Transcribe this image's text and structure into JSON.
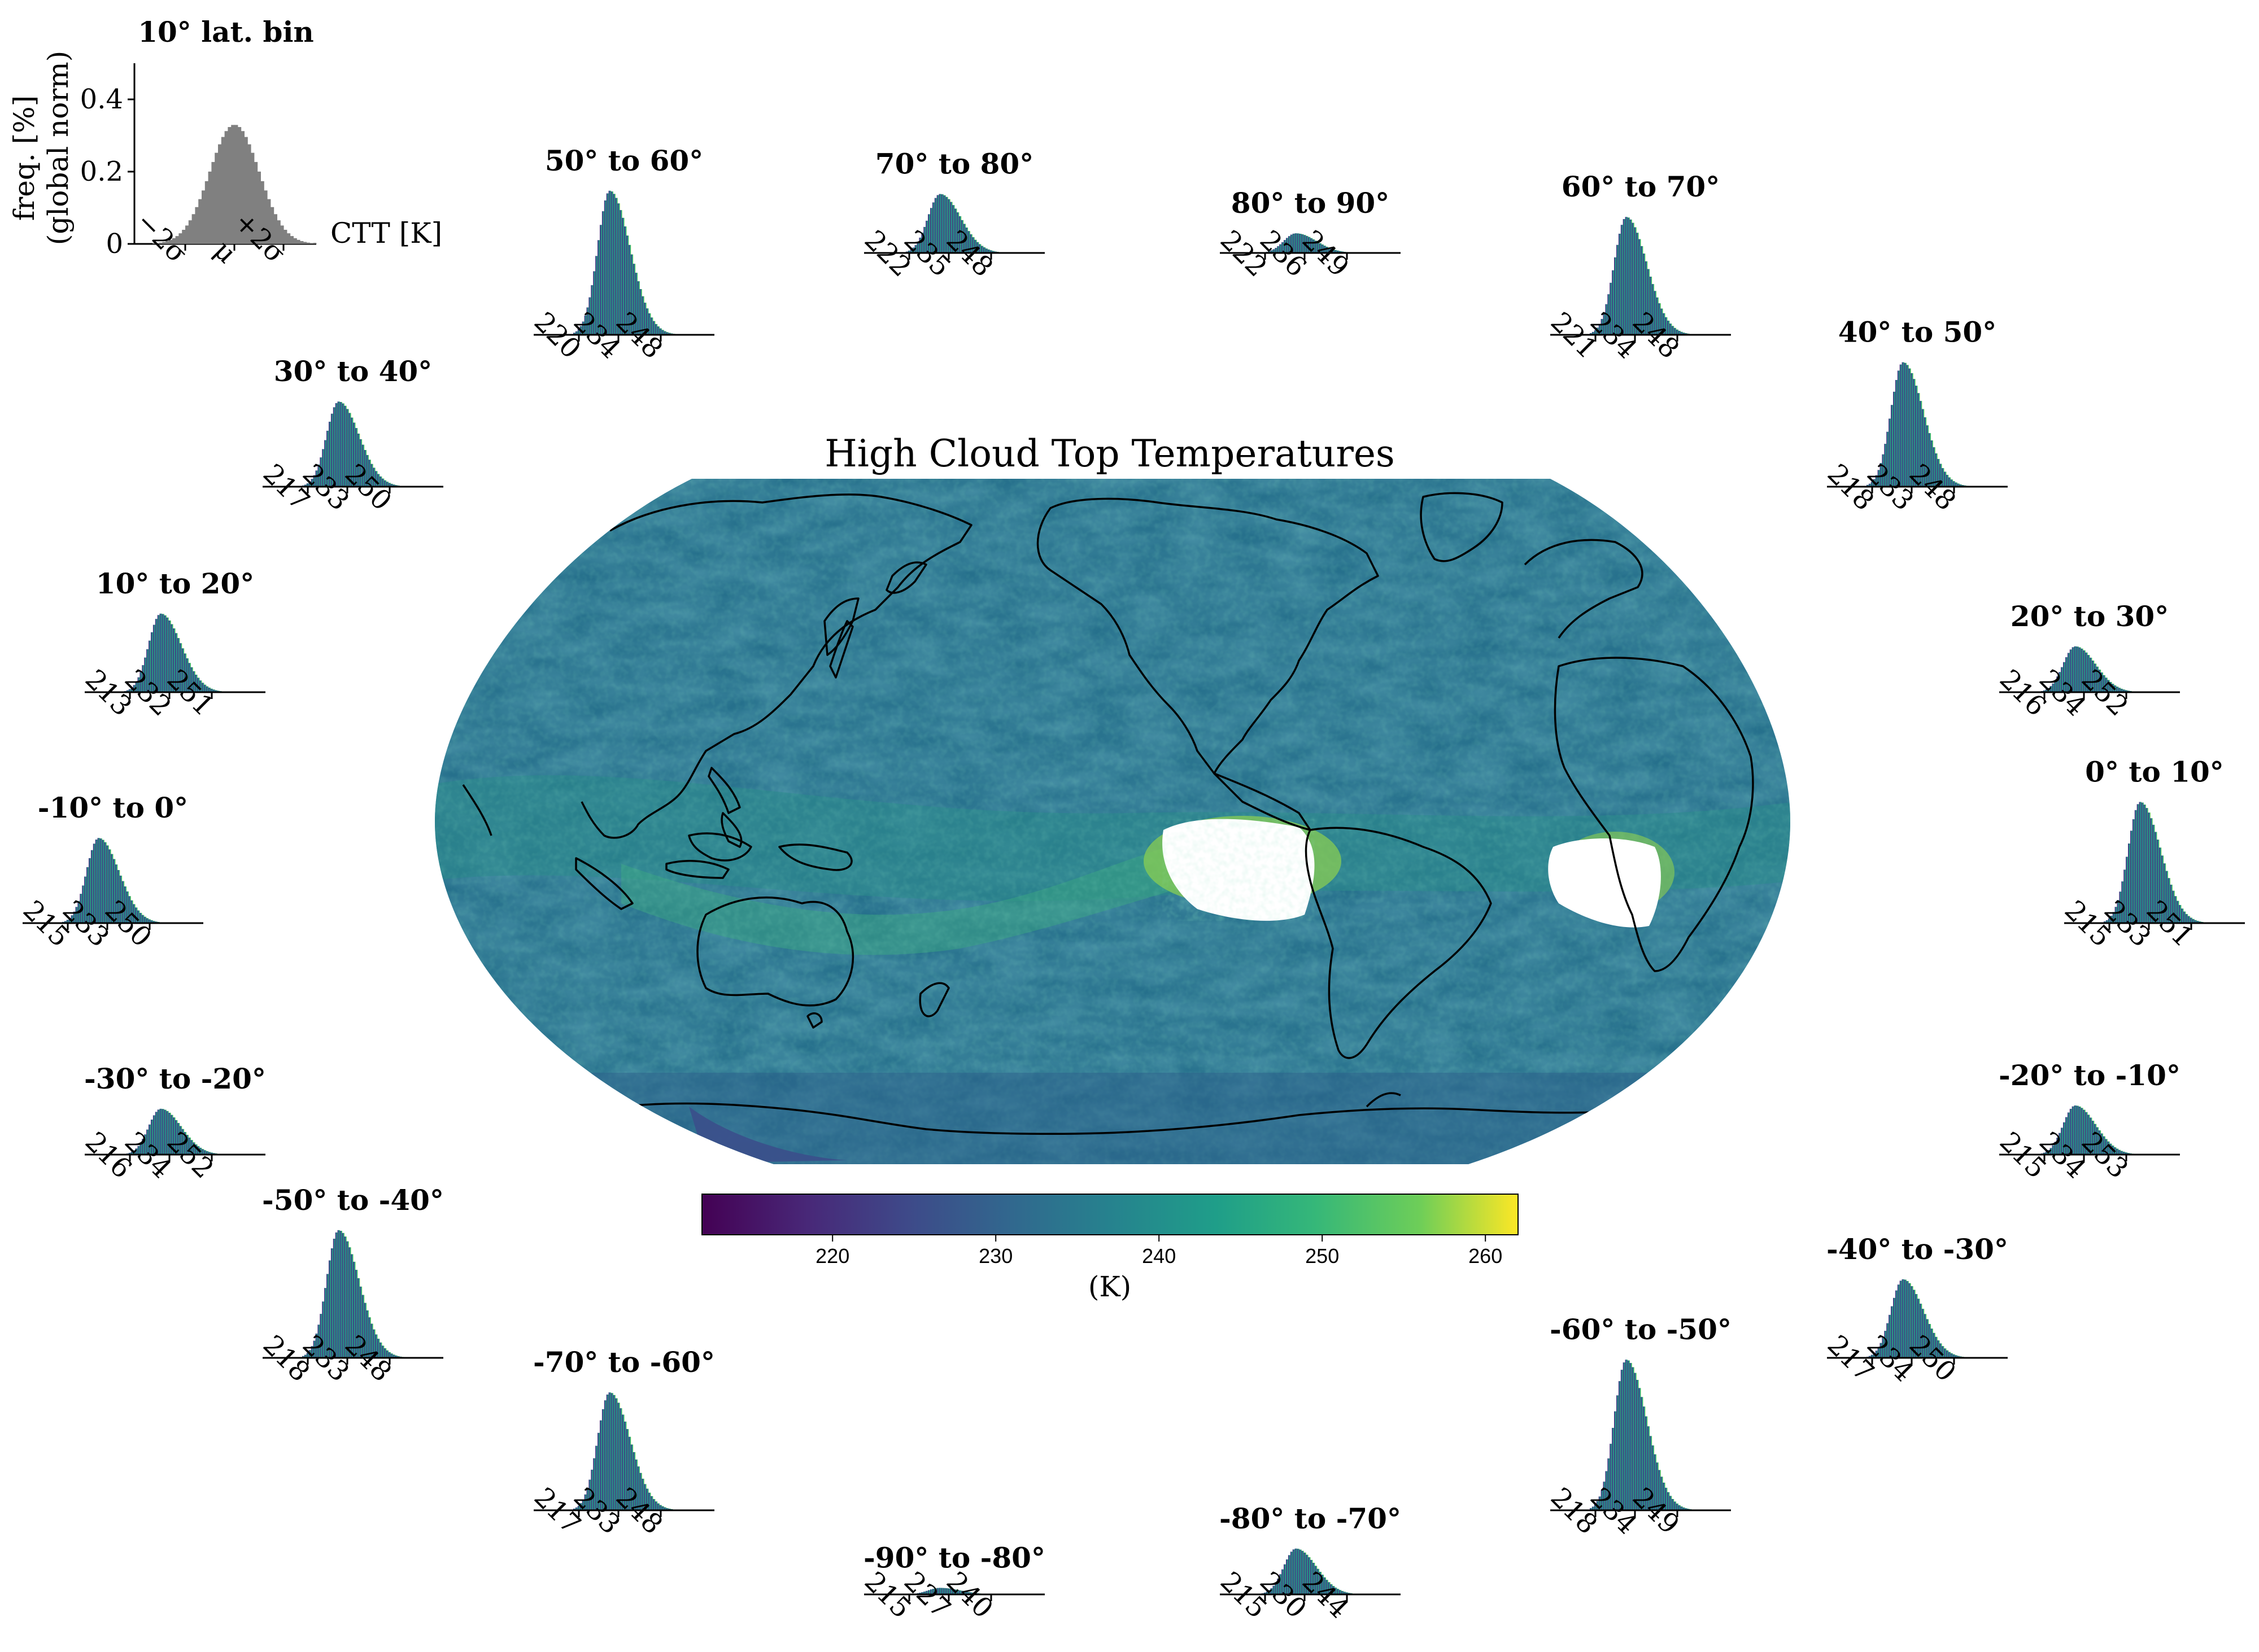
{
  "chart_data": {
    "type": "map",
    "title": "High Cloud Top Temperatures",
    "projection": "Robinson, centered on Pacific",
    "colorbar": {
      "label": "(K)",
      "colormap": "viridis",
      "range": [
        212,
        262
      ],
      "ticks": [
        220,
        230,
        240,
        250,
        260
      ]
    },
    "legend_inset": {
      "title": "10° lat. bin",
      "ylabel_line1": "freq. [%]",
      "ylabel_line2": "(global norm)",
      "yticks": [
        "0",
        "0.2",
        "0.4"
      ],
      "ylim": [
        0,
        0.5
      ],
      "xlabel": "CTT [K]",
      "xticks": [
        "−2σ",
        "μ",
        "+2σ"
      ],
      "peak": 0.33
    },
    "latitude_bins": [
      {
        "title": "80° to 90°",
        "ticks": [
          "222",
          "236",
          "249"
        ],
        "peak": 0.06
      },
      {
        "title": "70° to 80°",
        "ticks": [
          "222",
          "235",
          "248"
        ],
        "peak": 0.18
      },
      {
        "title": "60° to 70°",
        "ticks": [
          "221",
          "234",
          "248"
        ],
        "peak": 0.36
      },
      {
        "title": "50° to 60°",
        "ticks": [
          "220",
          "234",
          "248"
        ],
        "peak": 0.44
      },
      {
        "title": "40° to 50°",
        "ticks": [
          "218",
          "233",
          "248"
        ],
        "peak": 0.38
      },
      {
        "title": "30° to 40°",
        "ticks": [
          "217",
          "233",
          "250"
        ],
        "peak": 0.26
      },
      {
        "title": "20° to 30°",
        "ticks": [
          "216",
          "234",
          "252"
        ],
        "peak": 0.14
      },
      {
        "title": "10° to 20°",
        "ticks": [
          "213",
          "232",
          "251"
        ],
        "peak": 0.24
      },
      {
        "title": "0° to 10°",
        "ticks": [
          "215",
          "233",
          "251"
        ],
        "peak": 0.37
      },
      {
        "title": "-10° to 0°",
        "ticks": [
          "215",
          "233",
          "250"
        ],
        "peak": 0.26
      },
      {
        "title": "-20° to -10°",
        "ticks": [
          "215",
          "234",
          "253"
        ],
        "peak": 0.15
      },
      {
        "title": "-30° to -20°",
        "ticks": [
          "216",
          "234",
          "252"
        ],
        "peak": 0.14
      },
      {
        "title": "-40° to -30°",
        "ticks": [
          "217",
          "234",
          "250"
        ],
        "peak": 0.24
      },
      {
        "title": "-50° to -40°",
        "ticks": [
          "218",
          "233",
          "248"
        ],
        "peak": 0.39
      },
      {
        "title": "-60° to -50°",
        "ticks": [
          "218",
          "234",
          "249"
        ],
        "peak": 0.46
      },
      {
        "title": "-70° to -60°",
        "ticks": [
          "217",
          "233",
          "248"
        ],
        "peak": 0.36
      },
      {
        "title": "-80° to -70°",
        "ticks": [
          "215",
          "230",
          "244"
        ],
        "peak": 0.14
      },
      {
        "title": "-90° to -80°",
        "ticks": [
          "215",
          "227",
          "240"
        ],
        "peak": 0.02
      }
    ]
  }
}
